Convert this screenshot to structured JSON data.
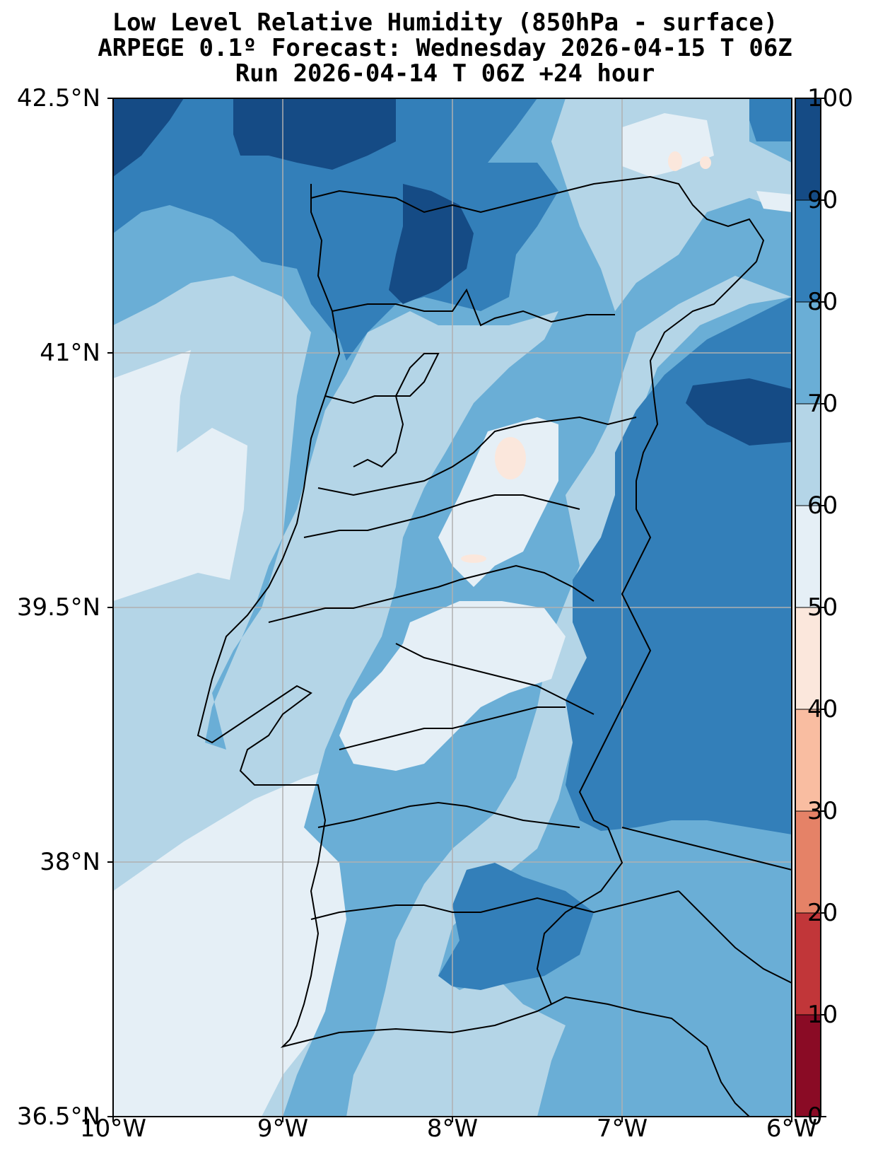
{
  "title": {
    "line1": "Low Level Relative Humidity (850hPa - surface)",
    "line2": "ARPEGE 0.1º Forecast: Wednesday 2026-04-15 T 06Z",
    "line3": "Run 2026-04-14 T 06Z +24 hour"
  },
  "axes": {
    "lat_ticks": [
      "42.5°N",
      "41°N",
      "39.5°N",
      "38°N",
      "36.5°N"
    ],
    "lon_ticks": [
      "10°W",
      "9°W",
      "8°W",
      "7°W",
      "6°W"
    ]
  },
  "colorbar": {
    "labels": [
      "100",
      "90",
      "80",
      "70",
      "60",
      "50",
      "40",
      "30",
      "20",
      "10",
      "0"
    ],
    "colors_bottom_to_top": [
      "#8a0b25",
      "#c13639",
      "#e58267",
      "#f9bda1",
      "#fbe7dc",
      "#e5eff6",
      "#b4d5e7",
      "#6aaed6",
      "#337fb9",
      "#154b85"
    ]
  },
  "palette": {
    "rh_50_60": "#e5eff6",
    "rh_60_70": "#b4d5e7",
    "rh_70_80": "#6aaed6",
    "rh_80_90": "#337fb9",
    "rh_90_100": "#154b85",
    "rh_40_50": "#fbe7dc"
  }
}
